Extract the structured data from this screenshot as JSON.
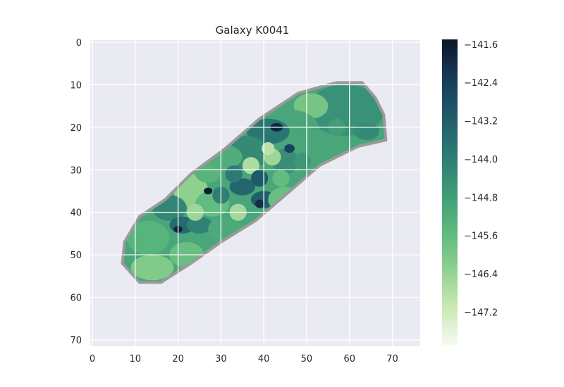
{
  "chart_data": {
    "type": "heatmap",
    "title": "Galaxy K0041",
    "xlabel": "",
    "ylabel": "",
    "xlim": [
      -0.5,
      76.5
    ],
    "ylim": [
      71.5,
      -0.5
    ],
    "x_ticks": [
      0,
      10,
      20,
      30,
      40,
      50,
      60,
      70
    ],
    "y_ticks": [
      0,
      10,
      20,
      30,
      40,
      50,
      60,
      70
    ],
    "grid": true,
    "colormap": "light-green-to-dark-navy",
    "colormap_stops": [
      "#f6fbf3",
      "#cbe8b3",
      "#8fd08e",
      "#5cb87e",
      "#3e9a78",
      "#2c7a73",
      "#1f5a6a",
      "#173a5c",
      "#0d1626"
    ],
    "colorbar": {
      "vmin": -147.9,
      "vmax": -141.5,
      "ticks": [
        -141.6,
        -142.4,
        -143.2,
        -144.0,
        -144.8,
        -145.6,
        -146.4,
        -147.2
      ],
      "tick_labels": [
        "−141.6",
        "−142.4",
        "−143.2",
        "−144.0",
        "−144.8",
        "−145.6",
        "−146.4",
        "−147.2"
      ]
    },
    "regions": [
      {
        "cx": 59,
        "cy": 16,
        "rx": 9,
        "ry": 6,
        "value": -144.5
      },
      {
        "cx": 51,
        "cy": 15,
        "rx": 4,
        "ry": 3,
        "value": -145.9
      },
      {
        "cx": 47,
        "cy": 21,
        "rx": 6,
        "ry": 5,
        "value": -145.0
      },
      {
        "cx": 41,
        "cy": 21,
        "rx": 5,
        "ry": 3,
        "value": -143.8
      },
      {
        "cx": 36,
        "cy": 26,
        "rx": 5,
        "ry": 4,
        "value": -144.3
      },
      {
        "cx": 30,
        "cy": 27,
        "rx": 5,
        "ry": 3,
        "value": -145.2
      },
      {
        "cx": 23,
        "cy": 35,
        "rx": 4,
        "ry": 4,
        "value": -146.3
      },
      {
        "cx": 28,
        "cy": 38,
        "rx": 4,
        "ry": 3,
        "value": -145.6
      },
      {
        "cx": 35,
        "cy": 34,
        "rx": 3,
        "ry": 2,
        "value": -143.4
      },
      {
        "cx": 40,
        "cy": 37,
        "rx": 3,
        "ry": 2,
        "value": -143.2
      },
      {
        "cx": 45,
        "cy": 37,
        "rx": 4,
        "ry": 3,
        "value": -145.7
      },
      {
        "cx": 18,
        "cy": 39,
        "rx": 4,
        "ry": 3,
        "value": -144.2
      },
      {
        "cx": 21,
        "cy": 43,
        "rx": 3,
        "ry": 2,
        "value": -143.5
      },
      {
        "cx": 25,
        "cy": 43,
        "rx": 3,
        "ry": 2,
        "value": -144.1
      },
      {
        "cx": 13,
        "cy": 46,
        "rx": 5,
        "ry": 4,
        "value": -145.4
      },
      {
        "cx": 14,
        "cy": 53,
        "rx": 5,
        "ry": 3,
        "value": -146.1
      },
      {
        "cx": 22,
        "cy": 50,
        "rx": 4,
        "ry": 3,
        "value": -145.7
      },
      {
        "cx": 31,
        "cy": 44,
        "rx": 4,
        "ry": 3,
        "value": -145.1
      },
      {
        "cx": 37,
        "cy": 29,
        "rx": 2,
        "ry": 2,
        "value": -146.7
      },
      {
        "cx": 45,
        "cy": 28,
        "rx": 3,
        "ry": 3,
        "value": -144.4
      },
      {
        "cx": 49,
        "cy": 28,
        "rx": 2,
        "ry": 2,
        "value": -144.6
      },
      {
        "cx": 42,
        "cy": 27,
        "rx": 2,
        "ry": 2,
        "value": -146.5
      },
      {
        "cx": 39,
        "cy": 32,
        "rx": 2,
        "ry": 2,
        "value": -143.1
      },
      {
        "cx": 33,
        "cy": 31,
        "rx": 2,
        "ry": 2,
        "value": -143.9
      },
      {
        "cx": 27,
        "cy": 31,
        "rx": 3,
        "ry": 2,
        "value": -145.4
      },
      {
        "cx": 34,
        "cy": 40,
        "rx": 2,
        "ry": 2,
        "value": -146.6
      },
      {
        "cx": 44,
        "cy": 32,
        "rx": 2,
        "ry": 2,
        "value": -145.6
      },
      {
        "cx": 30,
        "cy": 36,
        "rx": 2,
        "ry": 2,
        "value": -144.0
      },
      {
        "cx": 24,
        "cy": 40,
        "rx": 2,
        "ry": 2,
        "value": -146.5
      },
      {
        "cx": 41,
        "cy": 25,
        "rx": 1.5,
        "ry": 1.5,
        "value": -146.9
      },
      {
        "cx": 43,
        "cy": 20,
        "rx": 1.5,
        "ry": 1,
        "value": -141.9
      },
      {
        "cx": 27,
        "cy": 35,
        "rx": 1,
        "ry": 0.8,
        "value": -141.7
      },
      {
        "cx": 20,
        "cy": 44,
        "rx": 1,
        "ry": 0.8,
        "value": -141.8
      },
      {
        "cx": 39,
        "cy": 38,
        "rx": 1,
        "ry": 1,
        "value": -142.0
      },
      {
        "cx": 46,
        "cy": 25,
        "rx": 1.2,
        "ry": 1,
        "value": -142.5
      },
      {
        "cx": 57,
        "cy": 20,
        "rx": 2,
        "ry": 2,
        "value": -144.8
      },
      {
        "cx": 64,
        "cy": 21,
        "rx": 3,
        "ry": 2,
        "value": -144.3
      }
    ]
  }
}
